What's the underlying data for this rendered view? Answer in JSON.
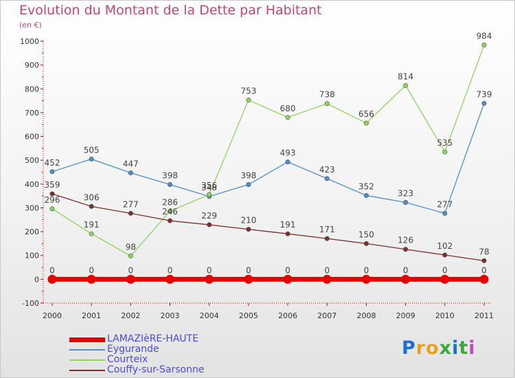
{
  "header": {
    "title": "Evolution du Montant de la Dette par Habitant",
    "subtitle": "(en €)"
  },
  "colors": {
    "title": "#c0457c",
    "legend_text": "#4a4adc"
  },
  "chart_data": {
    "type": "line",
    "title": "Evolution du Montant de la Dette par Habitant",
    "subtitle": "(en €)",
    "xlabel": "",
    "ylabel": "",
    "x": [
      "2000",
      "2001",
      "2002",
      "2003",
      "2004",
      "2005",
      "2006",
      "2007",
      "2008",
      "2009",
      "2010",
      "2011"
    ],
    "ylim": [
      -100,
      1000
    ],
    "yticks": [
      "-100",
      "0",
      "100",
      "200",
      "300",
      "400",
      "500",
      "600",
      "700",
      "800",
      "900",
      "1000"
    ],
    "grid": false,
    "legend_position": "bottom-left",
    "series": [
      {
        "name": "LAMAZIèRE-HAUTE",
        "color": "#e80000",
        "values": [
          0,
          0,
          0,
          0,
          0,
          0,
          0,
          0,
          0,
          0,
          0,
          0
        ],
        "labels": [
          "0",
          "0",
          "0",
          "0",
          "0",
          "0",
          "0",
          "0",
          "0",
          "0",
          "0",
          "0"
        ]
      },
      {
        "name": "Eygurande",
        "color": "#4e8ec9",
        "values": [
          452,
          505,
          447,
          398,
          348,
          398,
          493,
          423,
          352,
          323,
          277,
          739
        ],
        "labels": [
          "452",
          "505",
          "447",
          "398",
          "348",
          "398",
          "493",
          "423",
          "352",
          "323",
          "277",
          "739"
        ]
      },
      {
        "name": "Courteix",
        "color": "#8fd45a",
        "values": [
          296,
          191,
          98,
          286,
          356,
          753,
          680,
          738,
          656,
          814,
          535,
          984
        ],
        "labels": [
          "296",
          "191",
          "98",
          "286",
          "356",
          "753",
          "680",
          "738",
          "656",
          "814",
          "535",
          "984"
        ]
      },
      {
        "name": "Couffy-sur-Sarsonne",
        "color": "#7a2e2e",
        "values": [
          359,
          306,
          277,
          246,
          229,
          210,
          191,
          171,
          150,
          126,
          102,
          78
        ],
        "labels": [
          "359",
          "306",
          "277",
          "246",
          "229",
          "210",
          "191",
          "171",
          "150",
          "126",
          "102",
          "78"
        ]
      }
    ]
  },
  "logo": {
    "letters": [
      "P",
      "r",
      "o",
      "x",
      "i",
      "t",
      "i"
    ],
    "colors": [
      "#1e6fd0",
      "#e8a020",
      "#e8a020",
      "#3aa83a",
      "#1e6fd0",
      "#3aa83a",
      "#c04ac0"
    ]
  }
}
